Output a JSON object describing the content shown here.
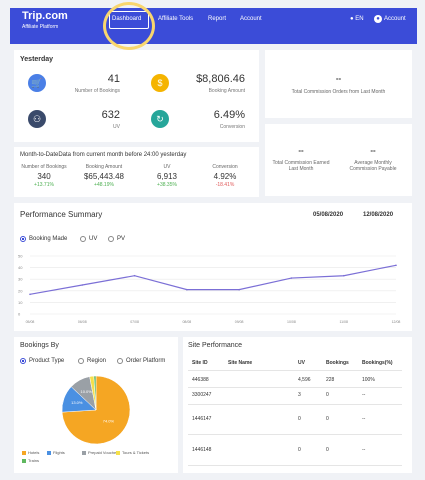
{
  "nav": {
    "logo": "Trip.com",
    "sub": "Affiliate Platform",
    "links": [
      "Dashboard",
      "Affiliate Tools",
      "Report",
      "Account"
    ],
    "lang": "EN",
    "account": "Account"
  },
  "yesterday": {
    "title": "Yesterday",
    "bookings": {
      "value": "41",
      "label": "Number of Bookings"
    },
    "amount": {
      "value": "$8,806.46",
      "label": "Booking Amount"
    },
    "uv": {
      "value": "632",
      "label": "UV"
    },
    "conversion": {
      "value": "6.49%",
      "label": "Conversion"
    }
  },
  "commission_orders": {
    "value": "--",
    "label": "Total Commission Orders from Last Month"
  },
  "commission_earned": {
    "value": "--",
    "label": "Total Commission Earned Last Month"
  },
  "commission_payable": {
    "value": "--",
    "label": "Average Monthly Commission Payable"
  },
  "mtd": {
    "title": "Month-to-DateData from current month before 24:00 yesterday",
    "cols": [
      {
        "h": "Number of Bookings",
        "v": "340",
        "d": "+13.71%",
        "trend": "up"
      },
      {
        "h": "Booking Amount",
        "v": "$65,443.48",
        "d": "+48.19%",
        "trend": "up"
      },
      {
        "h": "UV",
        "v": "6,913",
        "d": "+38.35%",
        "trend": "up"
      },
      {
        "h": "Conversion",
        "v": "4.92%",
        "d": "-18.41%",
        "trend": "down"
      }
    ]
  },
  "perf": {
    "title": "Performance Summary",
    "date_from": "05/08/2020",
    "date_to": "12/08/2020",
    "radios": [
      "Booking Made",
      "UV",
      "PV"
    ]
  },
  "chart_data": {
    "type": "line",
    "yticks": [
      "50",
      "40",
      "30",
      "20",
      "10",
      "0"
    ],
    "ylim": [
      0,
      50
    ],
    "x": [
      "05/08",
      "06/08",
      "07/08",
      "08/08",
      "09/08",
      "10/08",
      "11/08",
      "12/08"
    ],
    "values": [
      17,
      25,
      33,
      21,
      21,
      31,
      33,
      42
    ]
  },
  "bookings_by": {
    "title": "Bookings By",
    "radios": [
      "Product Type",
      "Region",
      "Order Platform"
    ],
    "pie": [
      {
        "name": "Hotels",
        "value": 74,
        "label": "74.0%",
        "color": "#f5a623"
      },
      {
        "name": "Flights",
        "value": 13,
        "label": "13.0%",
        "color": "#4a90e2"
      },
      {
        "name": "Prepaid Vouchers",
        "value": 10,
        "label": "10.0%",
        "color": "#9aa0a6"
      },
      {
        "name": "Tours & Tickets",
        "value": 2,
        "label": "",
        "color": "#f5e04a"
      },
      {
        "name": "Trains",
        "value": 1,
        "label": "",
        "color": "#5fb85f"
      }
    ]
  },
  "site_perf": {
    "title": "Site Performance",
    "headers": [
      "Site ID",
      "Site Name",
      "UV",
      "Bookings",
      "Bookings(%)"
    ],
    "rows": [
      [
        "446388",
        "",
        "4,596",
        "228",
        "100%"
      ],
      [
        "3300247",
        "",
        "3",
        "0",
        "--"
      ],
      [
        "1446147",
        "",
        "0",
        "0",
        "--"
      ],
      [
        "1446148",
        "",
        "0",
        "0",
        "--"
      ]
    ]
  }
}
